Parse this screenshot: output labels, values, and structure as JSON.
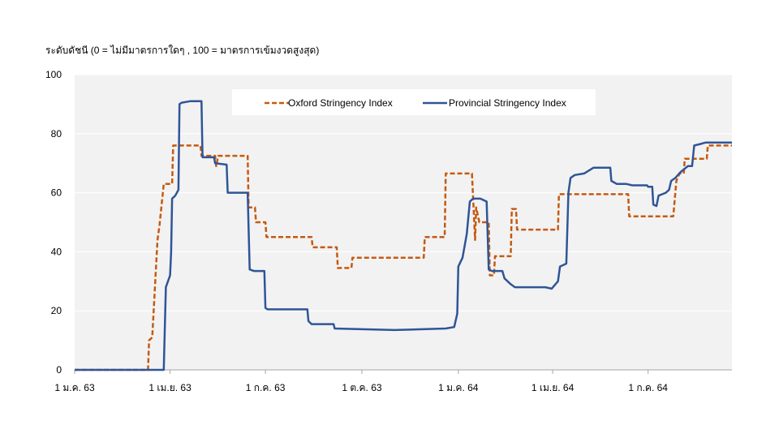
{
  "chart_data": {
    "type": "line",
    "ylabel": "ระดับดัชนี (0 = ไม่มีมาตรการใดๆ , 100 = มาตรการเข้มงวดสูงสุด)",
    "ylim": [
      0,
      100
    ],
    "yticks": [
      0,
      20,
      40,
      60,
      80,
      100
    ],
    "xlim": [
      "2020-01-01",
      "2021-09-19"
    ],
    "xticks": [
      {
        "date": "2020-01-01",
        "label": "1 ม.ค. 63"
      },
      {
        "date": "2020-04-01",
        "label": "1 เม.ย. 63"
      },
      {
        "date": "2020-07-01",
        "label": "1 ก.ค. 63"
      },
      {
        "date": "2020-10-01",
        "label": "1 ต.ค. 63"
      },
      {
        "date": "2021-01-01",
        "label": "1 ม.ค. 64"
      },
      {
        "date": "2021-04-01",
        "label": "1 เม.ย. 64"
      },
      {
        "date": "2021-07-01",
        "label": "1 ก.ค. 64"
      }
    ],
    "grid": true,
    "legend": "top-center",
    "series": [
      {
        "name": "Oxford Stringency Index",
        "color": "#C55A11",
        "style": "dashed",
        "points": [
          [
            "2020-01-01",
            0
          ],
          [
            "2020-03-11",
            0
          ],
          [
            "2020-03-12",
            10
          ],
          [
            "2020-03-15",
            11
          ],
          [
            "2020-03-20",
            44
          ],
          [
            "2020-03-22",
            49
          ],
          [
            "2020-03-26",
            63
          ],
          [
            "2020-04-03",
            63
          ],
          [
            "2020-04-04",
            76
          ],
          [
            "2020-04-30",
            76
          ],
          [
            "2020-05-01",
            72.5
          ],
          [
            "2020-05-14",
            72.5
          ],
          [
            "2020-05-15",
            69
          ],
          [
            "2020-05-17",
            72.5
          ],
          [
            "2020-06-14",
            72.5
          ],
          [
            "2020-06-15",
            55
          ],
          [
            "2020-06-21",
            55
          ],
          [
            "2020-06-22",
            50
          ],
          [
            "2020-07-01",
            50
          ],
          [
            "2020-07-02",
            45
          ],
          [
            "2020-08-14",
            45
          ],
          [
            "2020-08-15",
            41.5
          ],
          [
            "2020-09-07",
            41.5
          ],
          [
            "2020-09-08",
            34.5
          ],
          [
            "2020-09-21",
            34.5
          ],
          [
            "2020-09-22",
            38
          ],
          [
            "2020-11-29",
            38
          ],
          [
            "2020-11-30",
            45
          ],
          [
            "2020-12-19",
            45
          ],
          [
            "2020-12-20",
            66.5
          ],
          [
            "2021-01-14",
            66.5
          ],
          [
            "2021-01-17",
            44
          ],
          [
            "2021-01-18",
            55
          ],
          [
            "2021-01-21",
            50
          ],
          [
            "2021-01-30",
            50
          ],
          [
            "2021-01-31",
            32
          ],
          [
            "2021-02-04",
            32
          ],
          [
            "2021-02-05",
            38.5
          ],
          [
            "2021-02-20",
            38.5
          ],
          [
            "2021-02-21",
            54.5
          ],
          [
            "2021-02-25",
            54.5
          ],
          [
            "2021-02-26",
            47.5
          ],
          [
            "2021-04-06",
            47.5
          ],
          [
            "2021-04-07",
            59.5
          ],
          [
            "2021-06-12",
            59.5
          ],
          [
            "2021-06-13",
            52
          ],
          [
            "2021-07-25",
            52
          ],
          [
            "2021-07-28",
            64
          ],
          [
            "2021-07-31",
            66.5
          ],
          [
            "2021-08-04",
            66.5
          ],
          [
            "2021-08-05",
            71.5
          ],
          [
            "2021-08-26",
            71.5
          ],
          [
            "2021-08-27",
            76
          ],
          [
            "2021-09-19",
            76
          ]
        ]
      },
      {
        "name": "Provincial Stringency Index",
        "color": "#2F5597",
        "style": "solid",
        "points": [
          [
            "2020-01-01",
            0
          ],
          [
            "2020-03-26",
            0
          ],
          [
            "2020-03-28",
            28
          ],
          [
            "2020-04-01",
            32
          ],
          [
            "2020-04-02",
            40
          ],
          [
            "2020-04-03",
            58
          ],
          [
            "2020-04-06",
            59
          ],
          [
            "2020-04-09",
            61
          ],
          [
            "2020-04-10",
            90
          ],
          [
            "2020-04-12",
            90.5
          ],
          [
            "2020-04-20",
            91
          ],
          [
            "2020-04-25",
            91
          ],
          [
            "2020-05-01",
            91
          ],
          [
            "2020-05-02",
            72
          ],
          [
            "2020-05-13",
            72
          ],
          [
            "2020-05-14",
            70
          ],
          [
            "2020-05-25",
            69.5
          ],
          [
            "2020-05-26",
            60
          ],
          [
            "2020-06-14",
            60
          ],
          [
            "2020-06-16",
            34
          ],
          [
            "2020-06-20",
            33.5
          ],
          [
            "2020-06-30",
            33.5
          ],
          [
            "2020-07-01",
            21
          ],
          [
            "2020-07-03",
            20.5
          ],
          [
            "2020-07-12",
            20.5
          ],
          [
            "2020-07-19",
            20.5
          ],
          [
            "2020-08-10",
            20.5
          ],
          [
            "2020-08-11",
            16.5
          ],
          [
            "2020-08-14",
            15.5
          ],
          [
            "2020-09-04",
            15.5
          ],
          [
            "2020-09-05",
            14
          ],
          [
            "2020-11-01",
            13.5
          ],
          [
            "2020-12-20",
            14
          ],
          [
            "2020-12-28",
            14.5
          ],
          [
            "2020-12-31",
            19
          ],
          [
            "2021-01-01",
            35
          ],
          [
            "2021-01-05",
            38
          ],
          [
            "2021-01-09",
            46
          ],
          [
            "2021-01-12",
            57
          ],
          [
            "2021-01-15",
            58
          ],
          [
            "2021-01-22",
            58
          ],
          [
            "2021-01-28",
            57
          ],
          [
            "2021-01-30",
            34
          ],
          [
            "2021-02-02",
            33.5
          ],
          [
            "2021-02-12",
            33.5
          ],
          [
            "2021-02-14",
            31
          ],
          [
            "2021-02-20",
            29
          ],
          [
            "2021-02-24",
            28
          ],
          [
            "2021-03-15",
            28
          ],
          [
            "2021-03-25",
            28
          ],
          [
            "2021-03-31",
            27.5
          ],
          [
            "2021-04-06",
            30
          ],
          [
            "2021-04-08",
            35
          ],
          [
            "2021-04-14",
            36
          ],
          [
            "2021-04-16",
            60
          ],
          [
            "2021-04-18",
            65
          ],
          [
            "2021-04-22",
            66
          ],
          [
            "2021-05-01",
            66.5
          ],
          [
            "2021-05-10",
            68.5
          ],
          [
            "2021-05-20",
            68.5
          ],
          [
            "2021-05-26",
            68.5
          ],
          [
            "2021-05-27",
            64
          ],
          [
            "2021-06-01",
            63
          ],
          [
            "2021-06-10",
            63
          ],
          [
            "2021-06-16",
            62.5
          ],
          [
            "2021-06-30",
            62.5
          ],
          [
            "2021-07-01",
            62
          ],
          [
            "2021-07-05",
            62
          ],
          [
            "2021-07-06",
            56
          ],
          [
            "2021-07-09",
            55.5
          ],
          [
            "2021-07-11",
            59
          ],
          [
            "2021-07-18",
            60
          ],
          [
            "2021-07-21",
            61
          ],
          [
            "2021-07-23",
            64
          ],
          [
            "2021-07-27",
            65
          ],
          [
            "2021-08-01",
            67
          ],
          [
            "2021-08-08",
            69
          ],
          [
            "2021-08-12",
            69
          ],
          [
            "2021-08-14",
            76
          ],
          [
            "2021-08-20",
            76.5
          ],
          [
            "2021-08-25",
            77
          ],
          [
            "2021-09-01",
            77
          ],
          [
            "2021-09-19",
            77
          ]
        ]
      }
    ]
  }
}
